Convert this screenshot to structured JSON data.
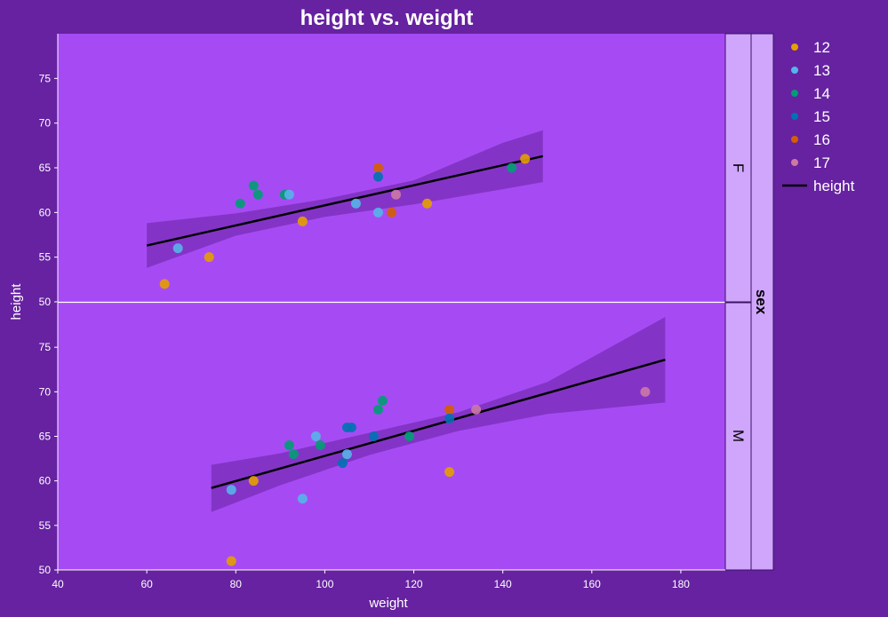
{
  "chart_data": {
    "type": "scatter",
    "title": "height vs. weight",
    "xlabel": "weight",
    "ylabel": "height",
    "facet_label": "sex",
    "xlim": [
      40,
      190
    ],
    "x_ticks": [
      40,
      60,
      80,
      100,
      120,
      140,
      160,
      180
    ],
    "ylim": [
      50,
      80
    ],
    "y_ticks": [
      50,
      55,
      60,
      65,
      70,
      75
    ],
    "legend": {
      "position": "right",
      "entries": [
        {
          "label": "12",
          "color": "#E69F00"
        },
        {
          "label": "13",
          "color": "#56B4E9"
        },
        {
          "label": "14",
          "color": "#009E73"
        },
        {
          "label": "15",
          "color": "#0072B2"
        },
        {
          "label": "16",
          "color": "#D55E00"
        },
        {
          "label": "17",
          "color": "#CC79A7"
        }
      ],
      "line_label": "height"
    },
    "colors": {
      "background": "#6622a0",
      "panel": "#a64bf4",
      "strip": "#d0a6fc",
      "band": "#6622a0",
      "line": "#000000"
    },
    "panels": [
      {
        "label": "F",
        "points": [
          {
            "x": 64,
            "y": 52,
            "age": "12"
          },
          {
            "x": 74,
            "y": 55,
            "age": "12"
          },
          {
            "x": 67,
            "y": 56,
            "age": "13"
          },
          {
            "x": 81,
            "y": 61,
            "age": "14"
          },
          {
            "x": 84,
            "y": 63,
            "age": "14"
          },
          {
            "x": 85,
            "y": 62,
            "age": "14"
          },
          {
            "x": 91,
            "y": 62,
            "age": "14"
          },
          {
            "x": 92,
            "y": 62,
            "age": "13"
          },
          {
            "x": 95,
            "y": 59,
            "age": "12"
          },
          {
            "x": 107,
            "y": 61,
            "age": "13"
          },
          {
            "x": 112,
            "y": 65,
            "age": "16"
          },
          {
            "x": 112,
            "y": 64,
            "age": "15"
          },
          {
            "x": 112,
            "y": 60,
            "age": "13"
          },
          {
            "x": 115,
            "y": 60,
            "age": "16"
          },
          {
            "x": 116,
            "y": 62,
            "age": "17"
          },
          {
            "x": 123,
            "y": 61,
            "age": "12"
          },
          {
            "x": 142,
            "y": 65,
            "age": "14"
          },
          {
            "x": 145,
            "y": 66,
            "age": "12"
          }
        ],
        "fit": {
          "x": [
            60,
            149
          ],
          "y": [
            56.3,
            66.3
          ]
        },
        "band": {
          "x": [
            60,
            80,
            100,
            120,
            140,
            149
          ],
          "lower": [
            53.8,
            57.4,
            59.5,
            60.9,
            62.6,
            63.4
          ],
          "upper": [
            58.8,
            59.9,
            61.5,
            63.6,
            67.8,
            69.2
          ]
        }
      },
      {
        "label": "M",
        "points": [
          {
            "x": 79,
            "y": 51,
            "age": "12"
          },
          {
            "x": 79,
            "y": 59,
            "age": "13"
          },
          {
            "x": 84,
            "y": 60,
            "age": "12"
          },
          {
            "x": 92,
            "y": 64,
            "age": "14"
          },
          {
            "x": 93,
            "y": 63,
            "age": "14"
          },
          {
            "x": 95,
            "y": 58,
            "age": "13"
          },
          {
            "x": 98,
            "y": 65,
            "age": "13"
          },
          {
            "x": 99,
            "y": 64,
            "age": "14"
          },
          {
            "x": 104,
            "y": 62,
            "age": "15"
          },
          {
            "x": 105,
            "y": 63,
            "age": "13"
          },
          {
            "x": 105,
            "y": 66,
            "age": "15"
          },
          {
            "x": 106,
            "y": 66,
            "age": "15"
          },
          {
            "x": 111,
            "y": 65,
            "age": "15"
          },
          {
            "x": 112,
            "y": 68,
            "age": "14"
          },
          {
            "x": 113,
            "y": 69,
            "age": "14"
          },
          {
            "x": 119,
            "y": 65,
            "age": "14"
          },
          {
            "x": 128,
            "y": 61,
            "age": "12"
          },
          {
            "x": 128,
            "y": 68,
            "age": "16"
          },
          {
            "x": 128,
            "y": 67,
            "age": "15"
          },
          {
            "x": 134,
            "y": 68,
            "age": "17"
          },
          {
            "x": 172,
            "y": 70,
            "age": "17"
          }
        ],
        "fit": {
          "x": [
            74.5,
            176.5
          ],
          "y": [
            59.2,
            73.6
          ]
        },
        "band": {
          "x": [
            74.5,
            90,
            110,
            130,
            150,
            176.5
          ],
          "lower": [
            56.5,
            59.5,
            62.9,
            65.6,
            67.5,
            68.8
          ],
          "upper": [
            61.8,
            63.1,
            65.4,
            67.7,
            71.1,
            78.4
          ]
        }
      }
    ]
  }
}
